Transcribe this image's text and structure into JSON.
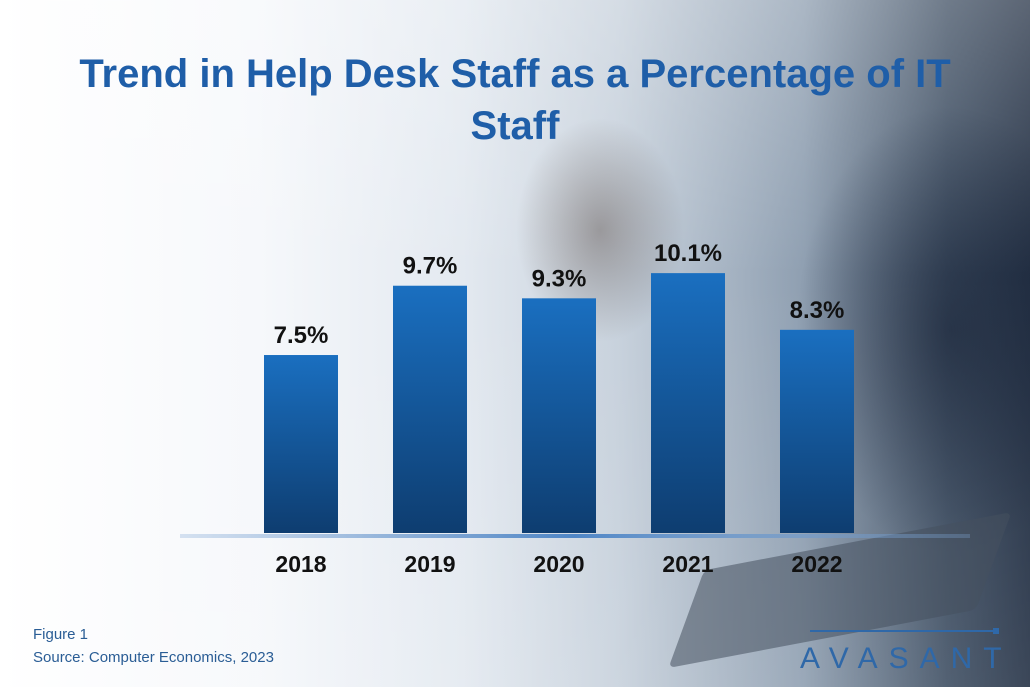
{
  "chart_data": {
    "type": "bar",
    "title": "Trend in Help Desk Staff as a Percentage of IT Staff",
    "categories": [
      "2018",
      "2019",
      "2020",
      "2021",
      "2022"
    ],
    "values": [
      7.5,
      9.7,
      9.3,
      10.1,
      8.3
    ],
    "data_labels": [
      "7.5%",
      "9.7%",
      "9.3%",
      "10.1%",
      "8.3%"
    ],
    "xlabel": "",
    "ylabel": "",
    "grid": false,
    "colors": {
      "bar_top": "#1a6fc0",
      "bar_bottom": "#0e3d70",
      "title": "#1f5ea8"
    }
  },
  "footer": {
    "figure": "Figure 1",
    "source": "Source: Computer Economics, 2023"
  },
  "logo": {
    "text": "AVASANT"
  }
}
